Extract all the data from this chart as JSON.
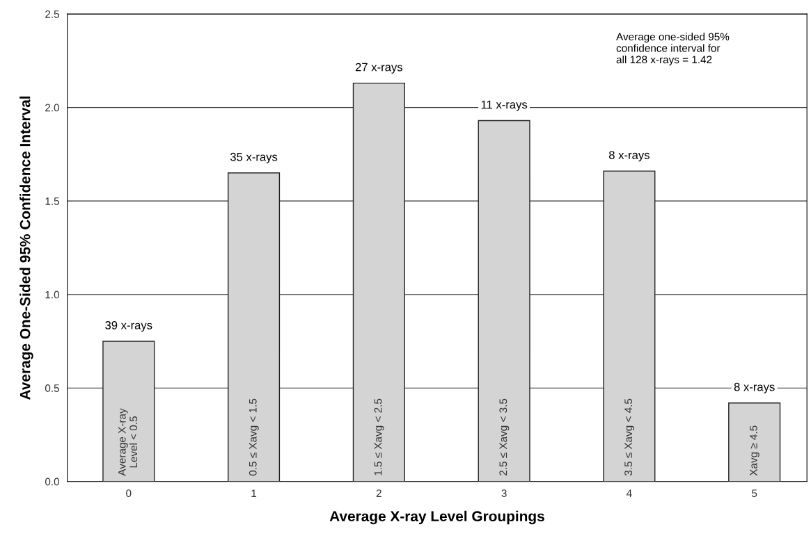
{
  "chart_data": {
    "type": "bar",
    "xlabel": "Average X-ray Level Groupings",
    "ylabel": "Average One-Sided 95% Confidence Interval",
    "categories": [
      "0",
      "1",
      "2",
      "3",
      "4",
      "5"
    ],
    "series": [
      {
        "color": "#d4d4d4",
        "values": [
          0.75,
          1.65,
          2.13,
          1.93,
          1.66,
          0.42
        ]
      }
    ],
    "ylim": [
      0,
      2.5
    ],
    "yticks": [
      {
        "value": 0,
        "label": "0.0"
      },
      {
        "value": 0.5,
        "label": "0.5"
      },
      {
        "value": 1,
        "label": "1.0"
      },
      {
        "value": 1.5,
        "label": "1.5"
      },
      {
        "value": 2,
        "label": "2.0"
      },
      {
        "value": 2.5,
        "label": "2.5"
      }
    ],
    "grid": "y",
    "annotations": [
      {
        "text": "39 x-rays",
        "x": "0",
        "y": 0.75
      },
      {
        "text": "35 x-rays",
        "x": "1",
        "y": 1.65
      },
      {
        "text": "27 x-rays",
        "x": "2",
        "y": 2.13
      },
      {
        "text": "11 x-rays",
        "x": "3",
        "y": 1.93
      },
      {
        "text": "8 x-rays",
        "x": "4",
        "y": 1.66
      },
      {
        "text": "8 x-rays",
        "x": "5",
        "y": 0.42
      },
      {
        "text": "Average X-ray\nLevel < 0.5",
        "x": "0",
        "y": 0
      },
      {
        "text": "0.5 ≤ Xavg < 1.5",
        "x": "1",
        "y": 0
      },
      {
        "text": "1.5 ≤ Xavg < 2.5",
        "x": "2",
        "y": 0
      },
      {
        "text": "2.5 ≤ Xavg < 3.5",
        "x": "3",
        "y": 0
      },
      {
        "text": "3.5 ≤ Xavg < 4.5",
        "x": "4",
        "y": 0
      },
      {
        "text": "Xavg ≥ 4.5",
        "x": "5",
        "y": 0
      },
      "Average one-sided 95%\nconfidence interval for\nall 128 x-rays = 1.42"
    ]
  }
}
